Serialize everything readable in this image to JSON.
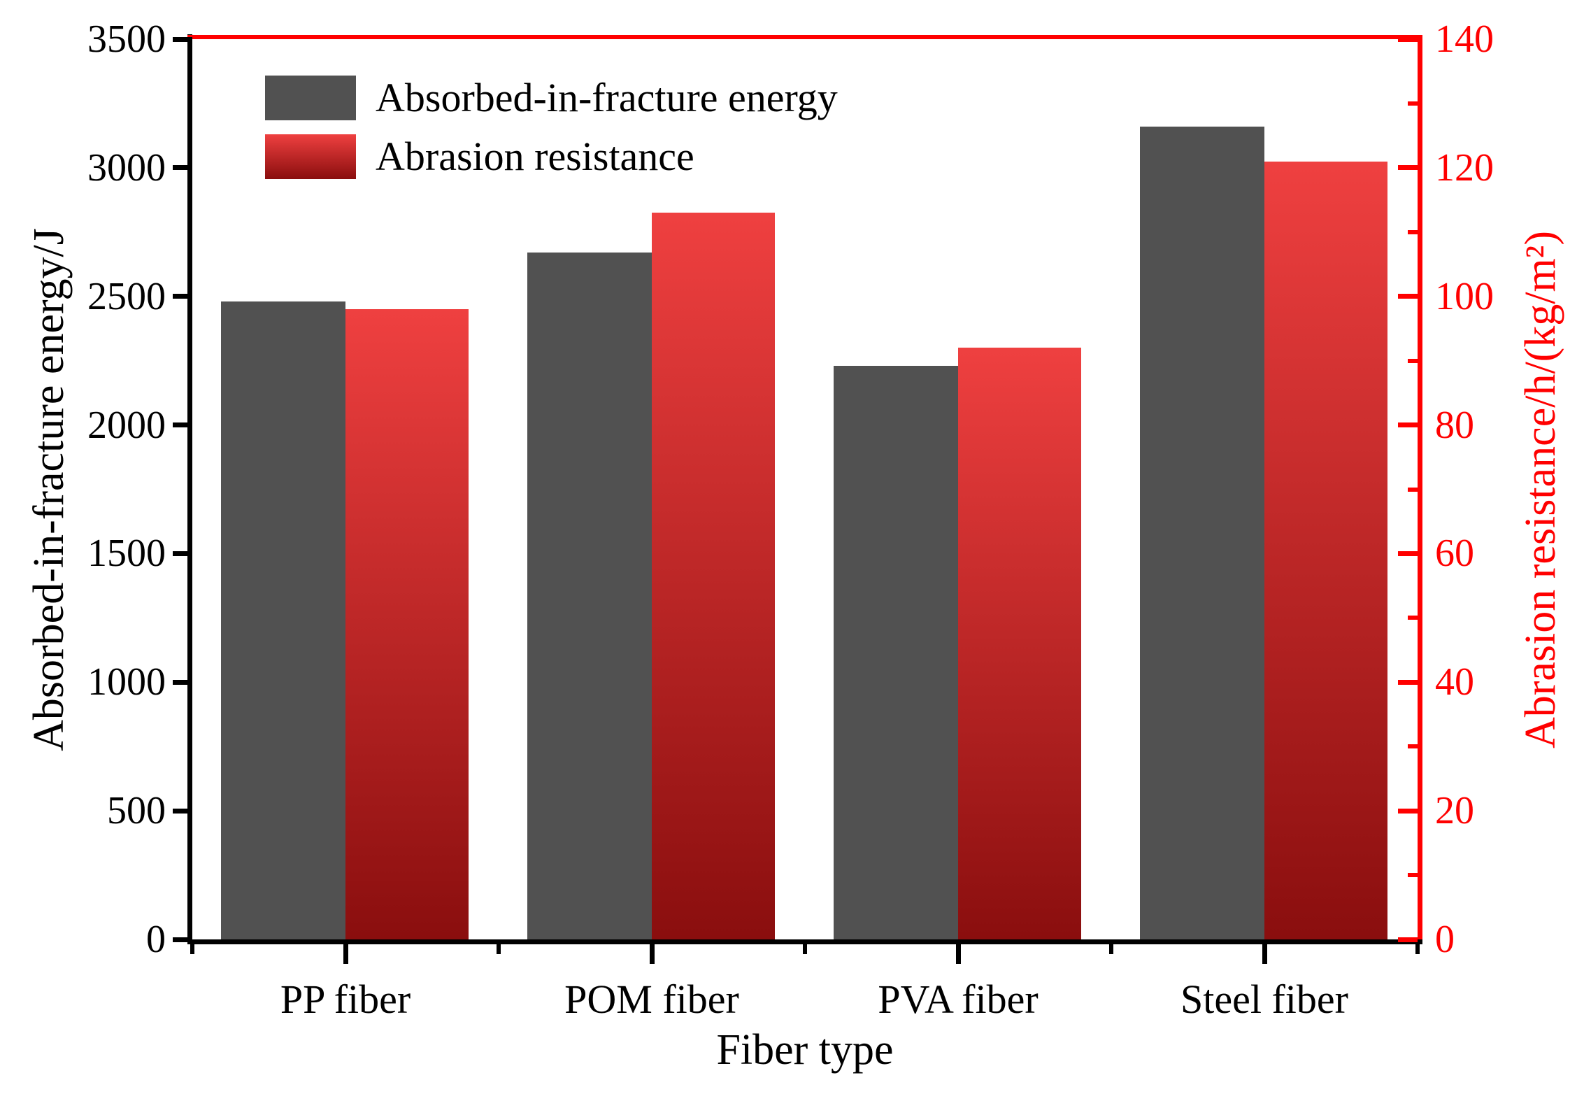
{
  "chart_data": {
    "type": "bar",
    "title": "",
    "categories": [
      "PP fiber",
      "POM fiber",
      "PVA fiber",
      "Steel fiber"
    ],
    "series": [
      {
        "name": "Absorbed-in-fracture energy",
        "axis": "left",
        "values": [
          2480,
          2670,
          2230,
          3160
        ]
      },
      {
        "name": "Abrasion resistance",
        "axis": "right",
        "values": [
          98,
          113,
          92,
          121
        ]
      }
    ],
    "xlabel": "Fiber type",
    "left_axis": {
      "label": "Absorbed-in-fracture energy/J",
      "min": 0,
      "max": 3500,
      "step": 500,
      "tick_labels": [
        "0",
        "500",
        "1000",
        "1500",
        "2000",
        "2500",
        "3000",
        "3500"
      ]
    },
    "right_axis": {
      "label": "Abrasion resistance/h/(kg/m²)",
      "min": 0,
      "max": 140,
      "step": 20,
      "minor_step": 10,
      "tick_labels": [
        "0",
        "20",
        "40",
        "60",
        "80",
        "100",
        "120",
        "140"
      ]
    },
    "legend_position": "top-left",
    "grid": false,
    "colors": {
      "energy_bar": "#515151",
      "abrasion_bar_top": "#ef4040",
      "abrasion_bar_bottom": "#8a0e0e",
      "right_axis_red": "#ff0000",
      "axis_black": "#000000"
    }
  }
}
